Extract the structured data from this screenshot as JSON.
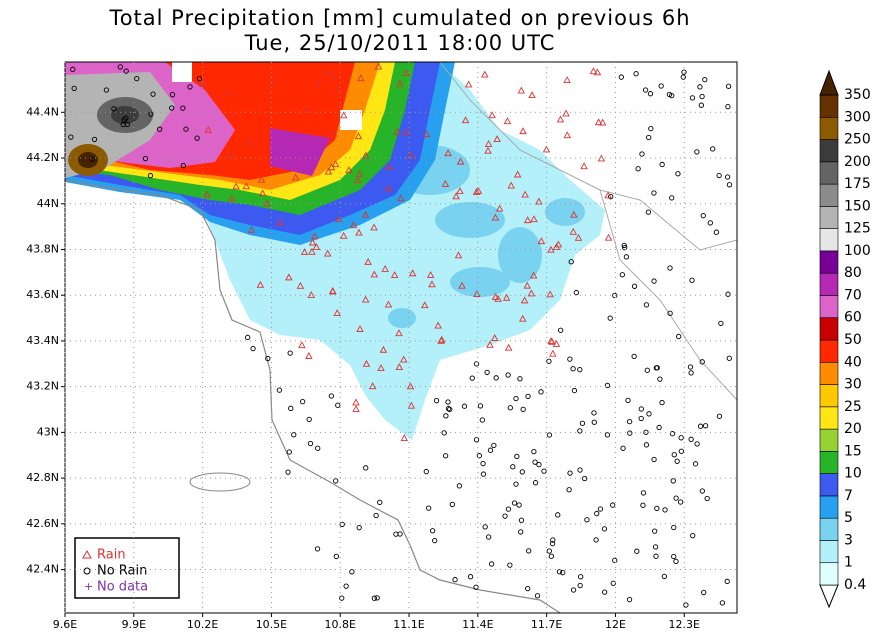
{
  "title": {
    "line1": "Total Precipitation [mm] cumulated on previous 6h",
    "line2": "Tue, 25/10/2011 18:00 UTC"
  },
  "map": {
    "lon_lim": [
      9.6,
      12.53
    ],
    "lat_lim": [
      42.21,
      44.62
    ],
    "lon_ticks": [
      {
        "value": 9.6,
        "label": "9.6E"
      },
      {
        "value": 9.9,
        "label": "9.9E"
      },
      {
        "value": 10.2,
        "label": "10.2E"
      },
      {
        "value": 10.5,
        "label": "10.5E"
      },
      {
        "value": 10.8,
        "label": "10.8E"
      },
      {
        "value": 11.1,
        "label": "11.1E"
      },
      {
        "value": 11.4,
        "label": "11.4E"
      },
      {
        "value": 11.7,
        "label": "11.7E"
      },
      {
        "value": 12,
        "label": "12E"
      },
      {
        "value": 12.3,
        "label": "12.3E"
      }
    ],
    "lat_ticks": [
      {
        "value": 42.4,
        "label": "42.4N"
      },
      {
        "value": 42.6,
        "label": "42.6N"
      },
      {
        "value": 42.8,
        "label": "42.8N"
      },
      {
        "value": 43,
        "label": "43N"
      },
      {
        "value": 43.2,
        "label": "43.2N"
      },
      {
        "value": 43.4,
        "label": "43.4N"
      },
      {
        "value": 43.6,
        "label": "43.6N"
      },
      {
        "value": 43.8,
        "label": "43.8N"
      },
      {
        "value": 44,
        "label": "44N"
      },
      {
        "value": 44.2,
        "label": "44.2N"
      },
      {
        "value": 44.4,
        "label": "44.4N"
      }
    ]
  },
  "legend": {
    "items": [
      "Rain",
      "No Rain",
      "No data"
    ]
  },
  "colorbar": {
    "levels": [
      0.4,
      1,
      3,
      5,
      7,
      10,
      15,
      20,
      25,
      30,
      40,
      50,
      60,
      70,
      80,
      100,
      125,
      150,
      175,
      200,
      250,
      300,
      350
    ],
    "colors": [
      "#ffffff",
      "#e0ffff",
      "#b4f0fa",
      "#78d2f0",
      "#28a0f0",
      "#3c5af0",
      "#28b428",
      "#96d232",
      "#ffe614",
      "#ffc800",
      "#ff8c00",
      "#ff2800",
      "#c80000",
      "#dc64c8",
      "#b428b4",
      "#780096",
      "#e6e6e6",
      "#b4b4b4",
      "#8c8c8c",
      "#646464",
      "#3c3c3c",
      "#8c5a00",
      "#643200",
      "#462200"
    ]
  }
}
